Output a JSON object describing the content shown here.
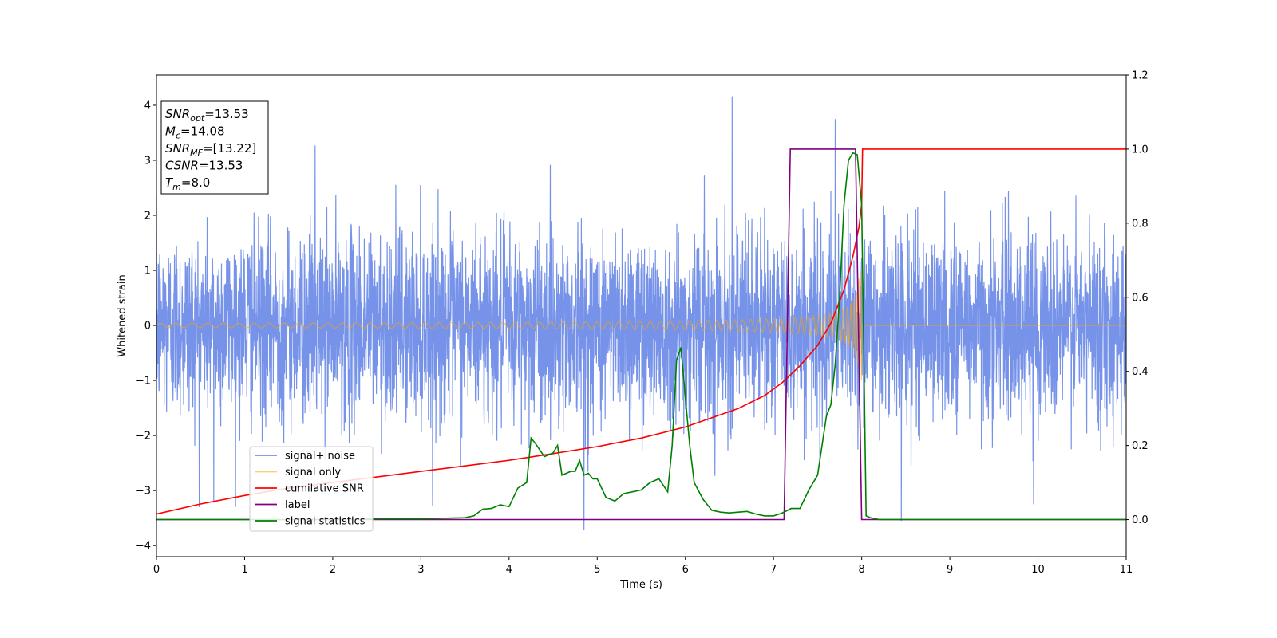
{
  "chart_data": {
    "type": "line",
    "xlabel": "Time (s)",
    "ylabel": "Whitened strain",
    "xlim": [
      0,
      11
    ],
    "ylim": [
      -4.2,
      4.55
    ],
    "y2lim": [
      -0.1,
      1.2
    ],
    "xticks": [
      "0",
      "1",
      "2",
      "3",
      "4",
      "5",
      "6",
      "7",
      "8",
      "9",
      "10",
      "11"
    ],
    "yticks": [
      "−4",
      "−3",
      "−2",
      "−1",
      "0",
      "1",
      "2",
      "3",
      "4"
    ],
    "y2ticks": [
      "0.0",
      "0.2",
      "0.4",
      "0.6",
      "0.8",
      "1.0",
      "1.2"
    ],
    "grid": false,
    "legend_placement": "lower-left",
    "annotation": {
      "lines": [
        {
          "var": "SNR",
          "sub": "opt",
          "value": "=13.53"
        },
        {
          "var": "M",
          "sub": "c",
          "value": "=14.08"
        },
        {
          "var": "SNR",
          "sub": "MF",
          "value": "=[13.22]"
        },
        {
          "var": "CSNR",
          "sub": "",
          "value": "=13.53"
        },
        {
          "var": "T",
          "sub": "m",
          "value": "=8.0"
        }
      ]
    },
    "series": [
      {
        "name": "signal+ noise",
        "color": "#4169e1",
        "axis": "left",
        "kind": "noise",
        "noise_std": 0.85,
        "noise_peaks": [
          [
            6.53,
            4.15
          ],
          [
            7.7,
            3.75
          ],
          [
            1.8,
            3.27
          ],
          [
            4.85,
            -3.72
          ],
          [
            8.45,
            -3.55
          ],
          [
            0.65,
            -3.22
          ],
          [
            9.95,
            -3.25
          ]
        ]
      },
      {
        "name": "signal only",
        "color": "#ffa500",
        "axis": "left",
        "kind": "chirp",
        "merger_time": 8.0,
        "amplitude_start": 0.04,
        "amplitude_peak": 1.0
      },
      {
        "name": "cumilative SNR",
        "color": "#ff0000",
        "axis": "right",
        "x": [
          0,
          0.5,
          1,
          1.5,
          2,
          2.5,
          3,
          3.5,
          4,
          4.5,
          5,
          5.5,
          6,
          6.3,
          6.6,
          6.9,
          7.1,
          7.3,
          7.5,
          7.65,
          7.8,
          7.9,
          7.97,
          8.0,
          8.01,
          11
        ],
        "y": [
          0.015,
          0.042,
          0.065,
          0.085,
          0.1,
          0.115,
          0.13,
          0.145,
          0.16,
          0.178,
          0.197,
          0.22,
          0.25,
          0.275,
          0.3,
          0.335,
          0.37,
          0.415,
          0.47,
          0.53,
          0.62,
          0.71,
          0.79,
          0.85,
          1.0,
          1.0
        ]
      },
      {
        "name": "label",
        "color": "#800080",
        "axis": "right",
        "x": [
          0,
          7.12,
          7.19,
          7.93,
          8.0,
          11
        ],
        "y": [
          0.0,
          0.0,
          1.0,
          1.0,
          0.0,
          0.0
        ]
      },
      {
        "name": "signal statistics",
        "color": "#008000",
        "axis": "right",
        "x": [
          0,
          1,
          2,
          2.5,
          3,
          3.5,
          3.6,
          3.7,
          3.8,
          3.9,
          4.0,
          4.05,
          4.1,
          4.2,
          4.25,
          4.3,
          4.4,
          4.5,
          4.55,
          4.6,
          4.7,
          4.75,
          4.8,
          4.85,
          4.9,
          4.95,
          5.0,
          5.1,
          5.2,
          5.3,
          5.4,
          5.5,
          5.6,
          5.7,
          5.8,
          5.85,
          5.9,
          5.95,
          6.0,
          6.05,
          6.1,
          6.2,
          6.3,
          6.4,
          6.5,
          6.6,
          6.7,
          6.8,
          6.9,
          7.0,
          7.1,
          7.2,
          7.3,
          7.4,
          7.5,
          7.6,
          7.65,
          7.7,
          7.75,
          7.8,
          7.85,
          7.9,
          7.95,
          8.0,
          8.05,
          8.1,
          8.2,
          11
        ],
        "y": [
          0.0,
          0.0,
          0.0,
          0.002,
          0.002,
          0.005,
          0.01,
          0.028,
          0.03,
          0.04,
          0.035,
          0.06,
          0.085,
          0.1,
          0.22,
          0.205,
          0.17,
          0.18,
          0.2,
          0.12,
          0.13,
          0.13,
          0.16,
          0.12,
          0.125,
          0.11,
          0.11,
          0.06,
          0.05,
          0.07,
          0.075,
          0.08,
          0.1,
          0.11,
          0.075,
          0.2,
          0.43,
          0.465,
          0.33,
          0.2,
          0.1,
          0.055,
          0.025,
          0.02,
          0.018,
          0.02,
          0.022,
          0.015,
          0.01,
          0.01,
          0.018,
          0.03,
          0.03,
          0.08,
          0.12,
          0.28,
          0.31,
          0.42,
          0.6,
          0.85,
          0.97,
          0.99,
          0.985,
          0.85,
          0.01,
          0.005,
          0.0,
          0.0
        ]
      }
    ]
  }
}
